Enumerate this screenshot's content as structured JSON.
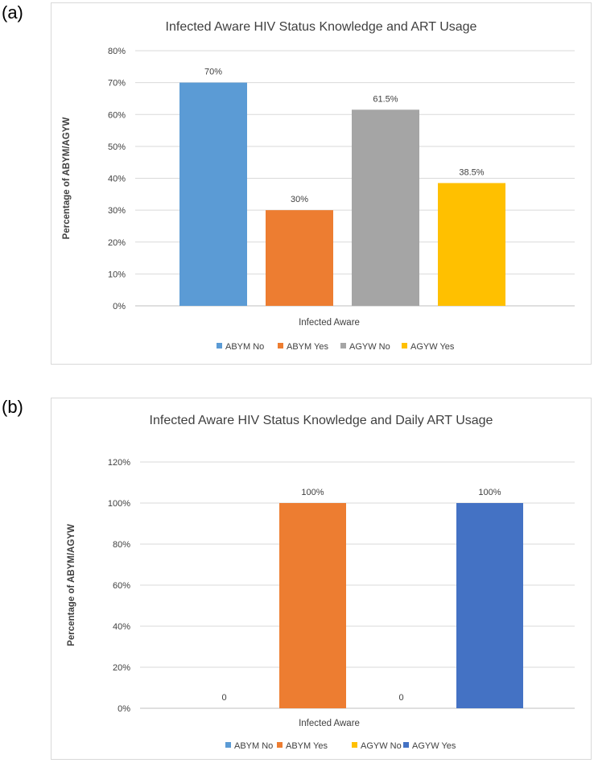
{
  "panels": [
    {
      "label": "(a)",
      "chart_data": {
        "type": "bar",
        "title": "Infected Aware HIV Status Knowledge and ART Usage",
        "xlabel": "Infected Aware",
        "ylabel": "Percentage of ABYM/AGYW",
        "categories": [
          "Infected Aware"
        ],
        "series": [
          {
            "name": "ABYM No",
            "values": [
              70
            ],
            "label": "70%",
            "color": "#5b9bd5"
          },
          {
            "name": "ABYM Yes",
            "values": [
              30
            ],
            "label": "30%",
            "color": "#ed7d31"
          },
          {
            "name": "AGYW No",
            "values": [
              61.5
            ],
            "label": "61.5%",
            "color": "#a5a5a5"
          },
          {
            "name": "AGYW Yes",
            "values": [
              38.5
            ],
            "label": "38.5%",
            "color": "#ffc000"
          }
        ],
        "ylim": [
          0,
          80
        ],
        "yticks": [
          "0%",
          "10%",
          "20%",
          "30%",
          "40%",
          "50%",
          "60%",
          "70%",
          "80%"
        ],
        "legend": "bottom",
        "grid": true
      }
    },
    {
      "label": "(b)",
      "chart_data": {
        "type": "bar",
        "title": "Infected Aware HIV Status Knowledge and Daily ART Usage",
        "xlabel": "Infected Aware",
        "ylabel": "Percentage of ABYM/AGYW",
        "categories": [
          "Infected Aware"
        ],
        "series": [
          {
            "name": "ABYM No",
            "values": [
              0
            ],
            "label": "0",
            "color": "#5b9bd5"
          },
          {
            "name": "ABYM Yes",
            "values": [
              100
            ],
            "label": "100%",
            "color": "#ed7d31"
          },
          {
            "name": "AGYW No",
            "values": [
              0
            ],
            "label": "0",
            "color": "#ffc000"
          },
          {
            "name": "AGYW Yes",
            "values": [
              100
            ],
            "label": "100%",
            "color": "#4472c4"
          }
        ],
        "ylim": [
          0,
          120
        ],
        "yticks": [
          "0%",
          "20%",
          "40%",
          "60%",
          "80%",
          "100%",
          "120%"
        ],
        "legend": "bottom",
        "grid": true
      }
    }
  ]
}
